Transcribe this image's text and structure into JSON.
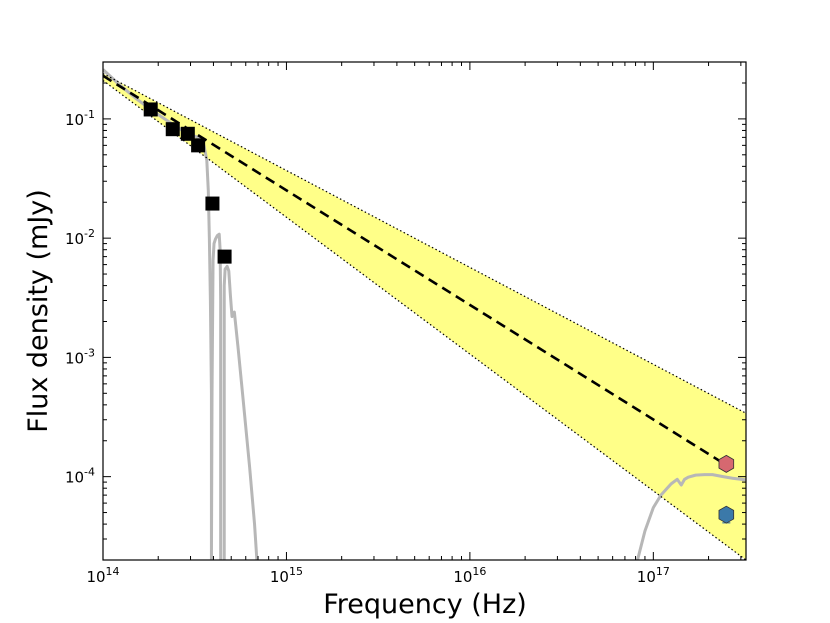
{
  "chart_data": {
    "type": "scatter",
    "title": "",
    "xlabel": "Frequency (Hz)",
    "ylabel": "Flux density (mJy)",
    "xscale": "log",
    "yscale": "log",
    "xlim": [
      100000000000000.0,
      3.2e+17
    ],
    "ylim": [
      2e-05,
      0.3
    ],
    "grid": false,
    "legend": "none",
    "x_ticks": [
      {
        "base": "10",
        "exp": "14",
        "value": 100000000000000.0
      },
      {
        "base": "10",
        "exp": "15",
        "value": 1000000000000000.0
      },
      {
        "base": "10",
        "exp": "16",
        "value": 1e+16
      },
      {
        "base": "10",
        "exp": "17",
        "value": 1e+17
      }
    ],
    "y_ticks": [
      {
        "base": "10",
        "exp": "-4",
        "value": 0.0001
      },
      {
        "base": "10",
        "exp": "-3",
        "value": 0.001
      },
      {
        "base": "10",
        "exp": "-2",
        "value": 0.01
      },
      {
        "base": "10",
        "exp": "-1",
        "value": 0.1
      }
    ],
    "series": [
      {
        "kind": "optical-photometry",
        "marker": "square",
        "color": "#000000",
        "points": [
          {
            "x": 182000000000000.0,
            "y": 0.12
          },
          {
            "x": 240000000000000.0,
            "y": 0.082
          },
          {
            "x": 290000000000000.0,
            "y": 0.075
          },
          {
            "x": 330000000000000.0,
            "y": 0.06
          },
          {
            "x": 395000000000000.0,
            "y": 0.0195
          },
          {
            "x": 460000000000000.0,
            "y": 0.007
          }
        ]
      },
      {
        "kind": "xray-point-red",
        "marker": "hexagon",
        "color": "#d66870",
        "points": [
          {
            "x": 2.5e+17,
            "y": 0.000128
          }
        ]
      },
      {
        "kind": "xray-point-blue",
        "marker": "hexagon",
        "color": "#3b79a9",
        "points": [
          {
            "x": 2.5e+17,
            "y": 4.8e-05,
            "err_low": 4.1e-05,
            "err_high": 5.4e-05
          }
        ]
      },
      {
        "kind": "power-law-fit",
        "style": "dashed",
        "color": "#000000",
        "x": [
          100000000000000.0,
          2.5e+17
        ],
        "y": [
          0.23,
          0.000125
        ]
      },
      {
        "kind": "power-law-upper-bound",
        "style": "dotted",
        "color": "#000000",
        "x": [
          100000000000000.0,
          3.2e+17
        ],
        "y": [
          0.24,
          0.00034
        ]
      },
      {
        "kind": "power-law-lower-bound",
        "style": "dotted",
        "color": "#000000",
        "x": [
          100000000000000.0,
          3.2e+17
        ],
        "y": [
          0.21,
          2e-05
        ]
      },
      {
        "kind": "model-spectrum-optical",
        "style": "solid",
        "color": "#b7b7b7",
        "x": [
          100000000000000.0,
          120000000000000.0,
          150000000000000.0,
          182000000000000.0,
          240000000000000.0,
          290000000000000.0,
          330000000000000.0,
          355000000000000.0,
          368000000000000.0,
          375000000000000.0,
          380000000000000.0,
          385000000000000.0,
          390000000000000.0,
          390000000000000.0,
          393000000000000.0,
          398000000000000.0,
          403000000000000.0,
          410000000000000.0,
          420000000000000.0,
          430000000000000.0,
          435000000000000.0,
          438000000000000.0,
          438000000000000.0
        ],
        "y": [
          0.26,
          0.2,
          0.15,
          0.12,
          0.09,
          0.075,
          0.07,
          0.06,
          0.045,
          0.025,
          0.01,
          0.003,
          0.0005,
          2e-05,
          0.0005,
          0.0065,
          0.009,
          0.0098,
          0.0105,
          0.0108,
          0.008,
          0.003,
          2e-05
        ]
      },
      {
        "kind": "model-spectrum-optical-tail",
        "style": "solid",
        "color": "#b7b7b7",
        "x": [
          458000000000000.0,
          458000000000000.0,
          463000000000000.0,
          475000000000000.0,
          485000000000000.0,
          495000000000000.0,
          505000000000000.0,
          520000000000000.0,
          545000000000000.0,
          580000000000000.0,
          630000000000000.0,
          670000000000000.0,
          690000000000000.0
        ],
        "y": [
          2e-05,
          0.004,
          0.0055,
          0.0058,
          0.0053,
          0.0033,
          0.0022,
          0.0024,
          0.0012,
          0.00045,
          0.00012,
          4e-05,
          2e-05
        ]
      },
      {
        "kind": "model-spectrum-xray",
        "style": "solid",
        "color": "#b7b7b7",
        "x": [
          8.2e+16,
          9e+16,
          1e+17,
          1.1e+17,
          1.25e+17,
          1.35e+17,
          1.42e+17,
          1.48e+17,
          1.55e+17,
          1.7e+17,
          1.9e+17,
          2.1e+17,
          2.4e+17,
          2.7e+17,
          3e+17,
          3.2e+17
        ],
        "y": [
          2e-05,
          3.5e-05,
          5.5e-05,
          7e-05,
          8.7e-05,
          9.5e-05,
          8.5e-05,
          9.5e-05,
          9.9e-05,
          0.000103,
          0.000104,
          0.000104,
          0.0001,
          9.7e-05,
          9.5e-05,
          9.4e-05
        ]
      }
    ],
    "colors": {
      "band_fill": "#ffff88",
      "axis": "#000000",
      "model": "#b7b7b7"
    }
  }
}
